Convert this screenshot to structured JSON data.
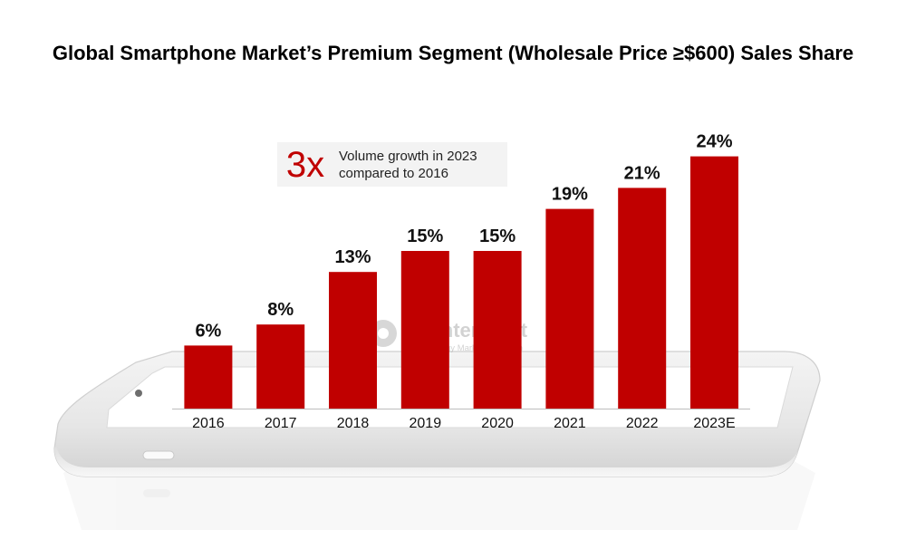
{
  "title": "Global Smartphone Market’s Premium Segment (Wholesale Price ≥$600) Sales Share",
  "callout": {
    "big": "3x",
    "text": "Volume growth in 2023\ncompared to 2016"
  },
  "watermark": {
    "name": "Counterpoint",
    "sub": "Technology Market Research"
  },
  "colors": {
    "bar": "#c00000",
    "callout_big": "#c00000",
    "callout_bg": "#f3f3f3"
  },
  "chart_data": {
    "type": "bar",
    "title": "Global Smartphone Market’s Premium Segment (Wholesale Price ≥$600) Sales Share",
    "xlabel": "",
    "ylabel": "",
    "categories": [
      "2016",
      "2017",
      "2018",
      "2019",
      "2020",
      "2021",
      "2022",
      "2023E"
    ],
    "values": [
      6,
      8,
      13,
      15,
      15,
      19,
      21,
      24
    ],
    "data_labels": [
      "6%",
      "8%",
      "13%",
      "15%",
      "15%",
      "19%",
      "21%",
      "24%"
    ],
    "ylim": [
      0,
      24
    ],
    "grid": false,
    "legend": "none"
  }
}
